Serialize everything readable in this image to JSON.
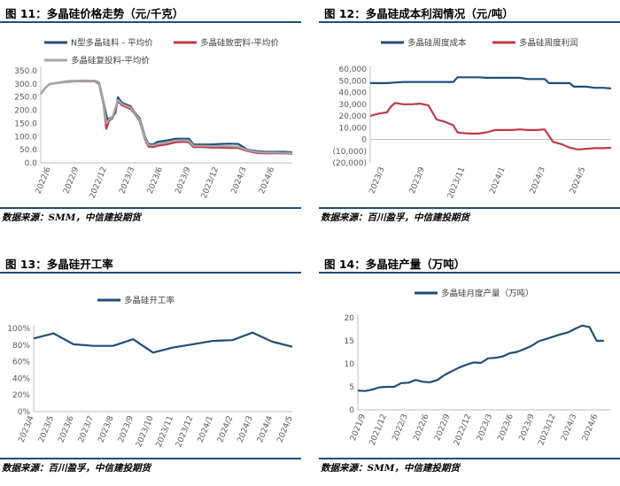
{
  "panels": [
    {
      "title": "图 11：多晶硅价格走势（元/千克）",
      "source": "数据来源：SMM，中信建投期货",
      "chart_data": {
        "type": "line",
        "title": "",
        "xlabel": "",
        "ylabel": "",
        "ylim": [
          0,
          350
        ],
        "yticks": [
          "0.0",
          "50.0",
          "100.0",
          "150.0",
          "200.0",
          "250.0",
          "300.0",
          "350.0"
        ],
        "xticks": [
          "2022/6",
          "2022/9",
          "2022/12",
          "2023/3",
          "2023/6",
          "2023/9",
          "2023/12",
          "2024/3",
          "2024/6"
        ],
        "x_range": [
          0,
          28
        ],
        "legend_position": "top",
        "grid": false,
        "series": [
          {
            "name": "N型多晶硅料 - 平均价",
            "color": "#1f4e79",
            "points": [
              [
                0,
                262
              ],
              [
                0.5,
                285
              ],
              [
                1,
                300
              ],
              [
                2,
                305
              ],
              [
                3,
                310
              ],
              [
                4,
                312
              ],
              [
                5,
                312
              ],
              [
                6,
                312
              ],
              [
                6.5,
                305
              ],
              [
                7,
                230
              ],
              [
                7.4,
                165
              ],
              [
                8,
                175
              ],
              [
                8.3,
                190
              ],
              [
                8.6,
                250
              ],
              [
                9,
                230
              ],
              [
                10,
                215
              ],
              [
                10.5,
                190
              ],
              [
                11,
                170
              ],
              [
                11.6,
                100
              ],
              [
                12,
                72
              ],
              [
                12.5,
                70
              ],
              [
                13,
                80
              ],
              [
                14,
                85
              ],
              [
                15,
                92
              ],
              [
                16,
                92
              ],
              [
                16.5,
                92
              ],
              [
                17,
                70
              ],
              [
                18,
                70
              ],
              [
                19,
                70
              ],
              [
                20,
                72
              ],
              [
                21,
                73
              ],
              [
                22,
                72
              ],
              [
                23,
                50
              ],
              [
                24,
                45
              ],
              [
                25,
                42
              ],
              [
                26,
                42
              ],
              [
                27,
                42
              ],
              [
                28,
                40
              ]
            ]
          },
          {
            "name": "多晶硅致密料-平均价",
            "color": "#c0394b",
            "points": [
              [
                0,
                262
              ],
              [
                0.5,
                285
              ],
              [
                1,
                300
              ],
              [
                2,
                305
              ],
              [
                3,
                308
              ],
              [
                4,
                310
              ],
              [
                5,
                310
              ],
              [
                6,
                310
              ],
              [
                6.5,
                300
              ],
              [
                7,
                220
              ],
              [
                7.3,
                130
              ],
              [
                7.6,
                160
              ],
              [
                8,
                170
              ],
              [
                8.6,
                235
              ],
              [
                9,
                220
              ],
              [
                10,
                205
              ],
              [
                10.5,
                185
              ],
              [
                11,
                160
              ],
              [
                11.6,
                90
              ],
              [
                12,
                62
              ],
              [
                12.5,
                60
              ],
              [
                13,
                65
              ],
              [
                14,
                70
              ],
              [
                15,
                78
              ],
              [
                16,
                80
              ],
              [
                16.5,
                78
              ],
              [
                17,
                60
              ],
              [
                18,
                60
              ],
              [
                19,
                58
              ],
              [
                20,
                58
              ],
              [
                21,
                57
              ],
              [
                22,
                57
              ],
              [
                23,
                45
              ],
              [
                24,
                38
              ],
              [
                25,
                36
              ],
              [
                26,
                36
              ],
              [
                27,
                36
              ],
              [
                28,
                35
              ]
            ]
          },
          {
            "name": "多晶硅复投料-平均价",
            "color": "#a6a6a6",
            "points": [
              [
                0,
                262
              ],
              [
                0.5,
                285
              ],
              [
                1,
                300
              ],
              [
                2,
                305
              ],
              [
                3,
                309
              ],
              [
                4,
                311
              ],
              [
                5,
                311
              ],
              [
                6,
                311
              ],
              [
                6.5,
                303
              ],
              [
                7,
                225
              ],
              [
                7.3,
                150
              ],
              [
                7.6,
                165
              ],
              [
                8,
                175
              ],
              [
                8.6,
                240
              ],
              [
                9,
                225
              ],
              [
                10,
                210
              ],
              [
                10.5,
                188
              ],
              [
                11,
                165
              ],
              [
                11.6,
                95
              ],
              [
                12,
                68
              ],
              [
                12.5,
                66
              ],
              [
                13,
                72
              ],
              [
                14,
                78
              ],
              [
                15,
                85
              ],
              [
                16,
                86
              ],
              [
                16.5,
                84
              ],
              [
                17,
                65
              ],
              [
                18,
                65
              ],
              [
                19,
                64
              ],
              [
                20,
                64
              ],
              [
                21,
                63
              ],
              [
                22,
                62
              ],
              [
                23,
                48
              ],
              [
                24,
                42
              ],
              [
                25,
                39
              ],
              [
                26,
                39
              ],
              [
                27,
                38
              ],
              [
                28,
                37
              ]
            ]
          }
        ]
      }
    },
    {
      "title": "图 12：多晶硅成本利润情况（元/吨）",
      "source": "数据来源：百川盈孚，中信建投期货",
      "chart_data": {
        "type": "line",
        "title": "",
        "xlabel": "",
        "ylabel": "",
        "ylim": [
          -20000,
          60000
        ],
        "yticks": [
          "(20,000)",
          "(10,000)",
          "0",
          "10,000",
          "20,000",
          "30,000",
          "40,000",
          "50,000",
          "60,000"
        ],
        "xticks": [
          "2023/3",
          "2023/9",
          "2023/11",
          "2024/1",
          "2024/3",
          "2024/5"
        ],
        "x_range": [
          0,
          29
        ],
        "legend_position": "top",
        "grid": false,
        "series": [
          {
            "name": "多晶硅周度成本",
            "color": "#1f4e79",
            "points": [
              [
                0,
                48000
              ],
              [
                1,
                48000
              ],
              [
                2,
                48000
              ],
              [
                3,
                48500
              ],
              [
                4,
                49000
              ],
              [
                5,
                49000
              ],
              [
                6,
                49000
              ],
              [
                7,
                49000
              ],
              [
                8,
                49000
              ],
              [
                9,
                49000
              ],
              [
                10,
                49000
              ],
              [
                10.5,
                53000
              ],
              [
                11,
                53000
              ],
              [
                12,
                53000
              ],
              [
                13,
                53000
              ],
              [
                14,
                52500
              ],
              [
                15,
                52500
              ],
              [
                16,
                52500
              ],
              [
                17,
                52500
              ],
              [
                18,
                52500
              ],
              [
                19,
                51500
              ],
              [
                20,
                51500
              ],
              [
                21,
                51500
              ],
              [
                21.5,
                48000
              ],
              [
                22,
                48000
              ],
              [
                23,
                48000
              ],
              [
                24,
                48000
              ],
              [
                24.5,
                45000
              ],
              [
                25,
                45000
              ],
              [
                26,
                45000
              ],
              [
                27,
                44000
              ],
              [
                28,
                44000
              ],
              [
                29,
                43500
              ]
            ]
          },
          {
            "name": "多晶硅周度利润",
            "color": "#c0394b",
            "points": [
              [
                0,
                20000
              ],
              [
                1,
                22000
              ],
              [
                2,
                23000
              ],
              [
                2.5,
                28000
              ],
              [
                3,
                31000
              ],
              [
                4,
                30000
              ],
              [
                5,
                30000
              ],
              [
                6,
                30500
              ],
              [
                7,
                29000
              ],
              [
                8,
                17000
              ],
              [
                9,
                15000
              ],
              [
                10,
                12000
              ],
              [
                10.5,
                6000
              ],
              [
                11,
                5500
              ],
              [
                12,
                5000
              ],
              [
                13,
                5000
              ],
              [
                14,
                6000
              ],
              [
                15,
                8000
              ],
              [
                16,
                8000
              ],
              [
                17,
                8000
              ],
              [
                18,
                8500
              ],
              [
                19,
                8000
              ],
              [
                20,
                8000
              ],
              [
                21,
                8500
              ],
              [
                22,
                -2000
              ],
              [
                23,
                -4000
              ],
              [
                24,
                -7000
              ],
              [
                25,
                -8500
              ],
              [
                26,
                -8000
              ],
              [
                27,
                -7500
              ],
              [
                28,
                -7500
              ],
              [
                29,
                -7000
              ]
            ]
          }
        ]
      }
    },
    {
      "title": "图 13：多晶硅开工率",
      "source": "数据来源：百川盈孚，中信建投期货",
      "chart_data": {
        "type": "line",
        "title": "",
        "xlabel": "",
        "ylabel": "",
        "ylim": [
          0,
          100
        ],
        "yticks": [
          "0%",
          "20%",
          "40%",
          "60%",
          "80%",
          "100%"
        ],
        "categories": [
          "2023/4",
          "2023/5",
          "2023/6",
          "2023/7",
          "2023/8",
          "2023/9",
          "2023/10",
          "2023/11",
          "2023/12",
          "2024/1",
          "2024/2",
          "2024/3",
          "2024/4",
          "2024/5"
        ],
        "legend_position": "top",
        "grid": false,
        "series": [
          {
            "name": "多晶硅开工率",
            "color": "#1f4e79",
            "values": [
              88,
              94,
              81,
              79,
              79,
              87,
              71,
              77,
              81,
              85,
              86,
              95,
              84,
              78
            ]
          }
        ]
      }
    },
    {
      "title": "图 14：多晶硅产量（万吨）",
      "source": "数据来源：SMM，中信建投期货",
      "chart_data": {
        "type": "line",
        "title": "",
        "xlabel": "",
        "ylabel": "",
        "ylim": [
          0,
          20
        ],
        "yticks": [
          "0",
          "5",
          "10",
          "15",
          "20"
        ],
        "xticks": [
          "2021/9",
          "2021/12",
          "2022/3",
          "2022/6",
          "2022/9",
          "2022/12",
          "2023/3",
          "2023/6",
          "2023/9",
          "2023/12",
          "2024/3",
          "2024/6"
        ],
        "x_range": [
          0,
          35
        ],
        "legend_position": "top",
        "grid": false,
        "series": [
          {
            "name": "多晶硅月度产量（万吨）",
            "color": "#1f4e79",
            "points": [
              [
                0,
                4.2
              ],
              [
                1,
                4.1
              ],
              [
                2,
                4.4
              ],
              [
                3,
                4.9
              ],
              [
                4,
                5.0
              ],
              [
                5,
                5.0
              ],
              [
                6,
                5.8
              ],
              [
                7,
                5.9
              ],
              [
                8,
                6.5
              ],
              [
                9,
                6.1
              ],
              [
                10,
                6.0
              ],
              [
                11,
                6.5
              ],
              [
                12,
                7.6
              ],
              [
                13,
                8.4
              ],
              [
                14,
                9.2
              ],
              [
                15,
                9.8
              ],
              [
                16,
                10.3
              ],
              [
                17,
                10.2
              ],
              [
                18,
                11.2
              ],
              [
                19,
                11.3
              ],
              [
                20,
                11.6
              ],
              [
                21,
                12.3
              ],
              [
                22,
                12.6
              ],
              [
                23,
                13.2
              ],
              [
                24,
                13.9
              ],
              [
                25,
                14.9
              ],
              [
                26,
                15.4
              ],
              [
                27,
                15.9
              ],
              [
                28,
                16.4
              ],
              [
                29,
                16.8
              ],
              [
                30,
                17.6
              ],
              [
                31,
                18.3
              ],
              [
                32,
                18.0
              ],
              [
                33,
                15.0
              ],
              [
                34,
                15.0
              ]
            ]
          }
        ]
      }
    }
  ]
}
